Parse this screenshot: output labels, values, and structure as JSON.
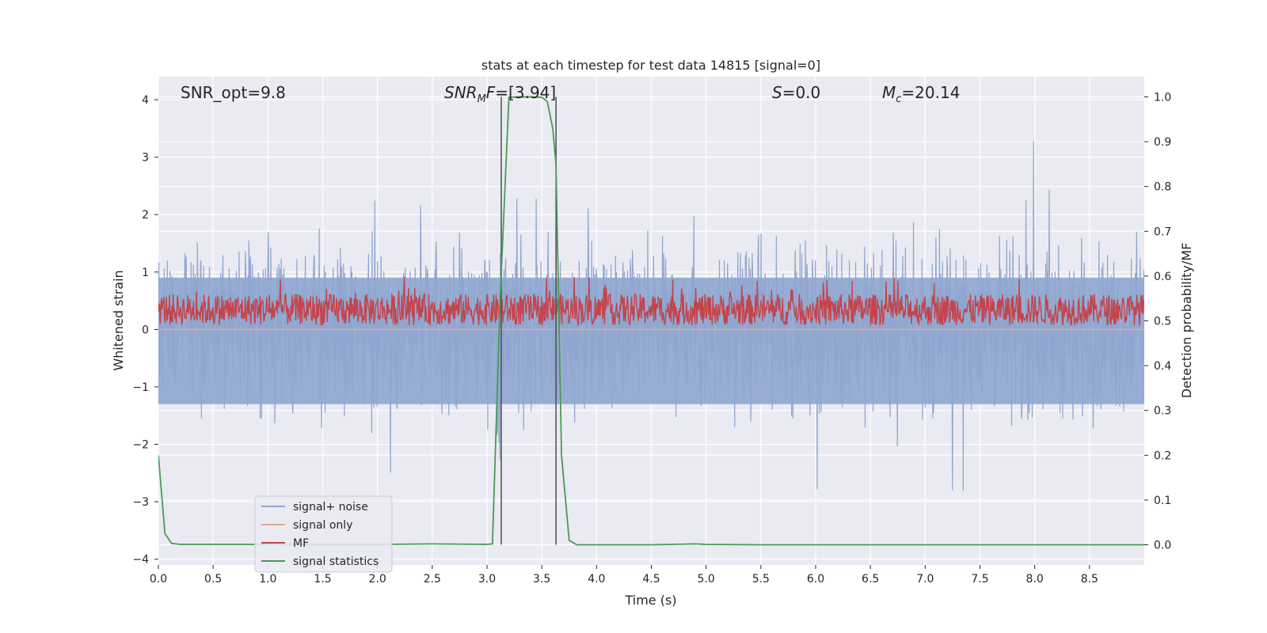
{
  "chart_data": {
    "type": "line",
    "title": "stats at each timestep for test data 14815 [signal=0]",
    "xlabel": "Time (s)",
    "ylabel": "Whitened strain",
    "ylabel_right": "Detection probability/MF",
    "xlim": [
      0,
      9.0
    ],
    "ylim": [
      -4.1,
      4.4
    ],
    "ylim_right": [
      -0.045,
      1.045
    ],
    "x_ticks": [
      "0.0",
      "0.5",
      "1.0",
      "1.5",
      "2.0",
      "2.5",
      "3.0",
      "3.5",
      "4.0",
      "4.5",
      "5.0",
      "5.5",
      "6.0",
      "6.5",
      "7.0",
      "7.5",
      "8.0",
      "8.5"
    ],
    "y_ticks": [
      "4",
      "3",
      "2",
      "1",
      "0",
      "−1",
      "−2",
      "−3",
      "−4"
    ],
    "y_ticks_right": [
      "1.0",
      "0.9",
      "0.8",
      "0.7",
      "0.6",
      "0.5",
      "0.4",
      "0.3",
      "0.2",
      "0.1",
      "0.0"
    ],
    "grid": true,
    "annotations": {
      "snr_opt": "SNR_opt=9.8",
      "snr_mf_base": "SNR",
      "snr_mf_sub": "M",
      "snr_mf_rest": "F",
      "snr_mf_value": "=[3.94]",
      "s_symbol": "S",
      "s_value": "=0.0",
      "mc_base": "M",
      "mc_sub": "c",
      "mc_value": "=20.14"
    },
    "legend": {
      "location": "lower left",
      "entries": [
        "signal+ noise",
        "signal only",
        "MF",
        "signal statistics"
      ]
    },
    "colors": {
      "signal_noise": "#8fa6cf",
      "signal_only": "#e8a88a",
      "mf": "#c4444b",
      "signal_statistics": "#4a9a57",
      "vlines": "#4d4d4d",
      "background": "#eaeaf2",
      "grid": "#ffffff"
    },
    "series": [
      {
        "name": "signal+ noise",
        "axis": "left",
        "description_stats": {
          "upper_envelope_typical": 1.6,
          "lower_envelope_typical": -1.6,
          "peak_max": 4.0,
          "peak_min": -3.7
        }
      },
      {
        "name": "signal only",
        "axis": "left",
        "x": [
          0,
          9.0
        ],
        "y": [
          0,
          0
        ]
      },
      {
        "name": "MF",
        "axis": "right",
        "band_low": 0.49,
        "band_typical_high": 0.56,
        "band_peak_high": 0.6
      },
      {
        "name": "signal statistics",
        "axis": "right",
        "x": [
          0.0,
          0.06,
          0.12,
          0.2,
          0.3,
          0.5,
          1.0,
          1.5,
          2.0,
          2.5,
          3.0,
          3.05,
          3.12,
          3.2,
          3.3,
          3.4,
          3.5,
          3.55,
          3.6,
          3.63,
          3.68,
          3.75,
          3.82,
          4.0,
          4.5,
          4.9,
          5.0,
          5.5,
          6.0,
          6.5,
          7.0,
          7.5,
          8.0,
          8.5,
          9.0
        ],
        "y": [
          0.2,
          0.025,
          0.003,
          0.001,
          0.001,
          0.001,
          0.001,
          0.001,
          0.001,
          0.002,
          0.001,
          0.002,
          0.55,
          0.999,
          1.0,
          1.0,
          0.999,
          0.99,
          0.93,
          0.85,
          0.2,
          0.01,
          0.0,
          0.0,
          0.0,
          0.002,
          0.001,
          0.0,
          0.0,
          0.0,
          0.0,
          0.0,
          0.0,
          0.0,
          0.0
        ]
      }
    ],
    "vertical_lines": [
      {
        "x": 3.13,
        "y_from": 0.0,
        "y_to": 1.0
      },
      {
        "x": 3.63,
        "y_from": 0.0,
        "y_to": 1.0
      }
    ]
  }
}
